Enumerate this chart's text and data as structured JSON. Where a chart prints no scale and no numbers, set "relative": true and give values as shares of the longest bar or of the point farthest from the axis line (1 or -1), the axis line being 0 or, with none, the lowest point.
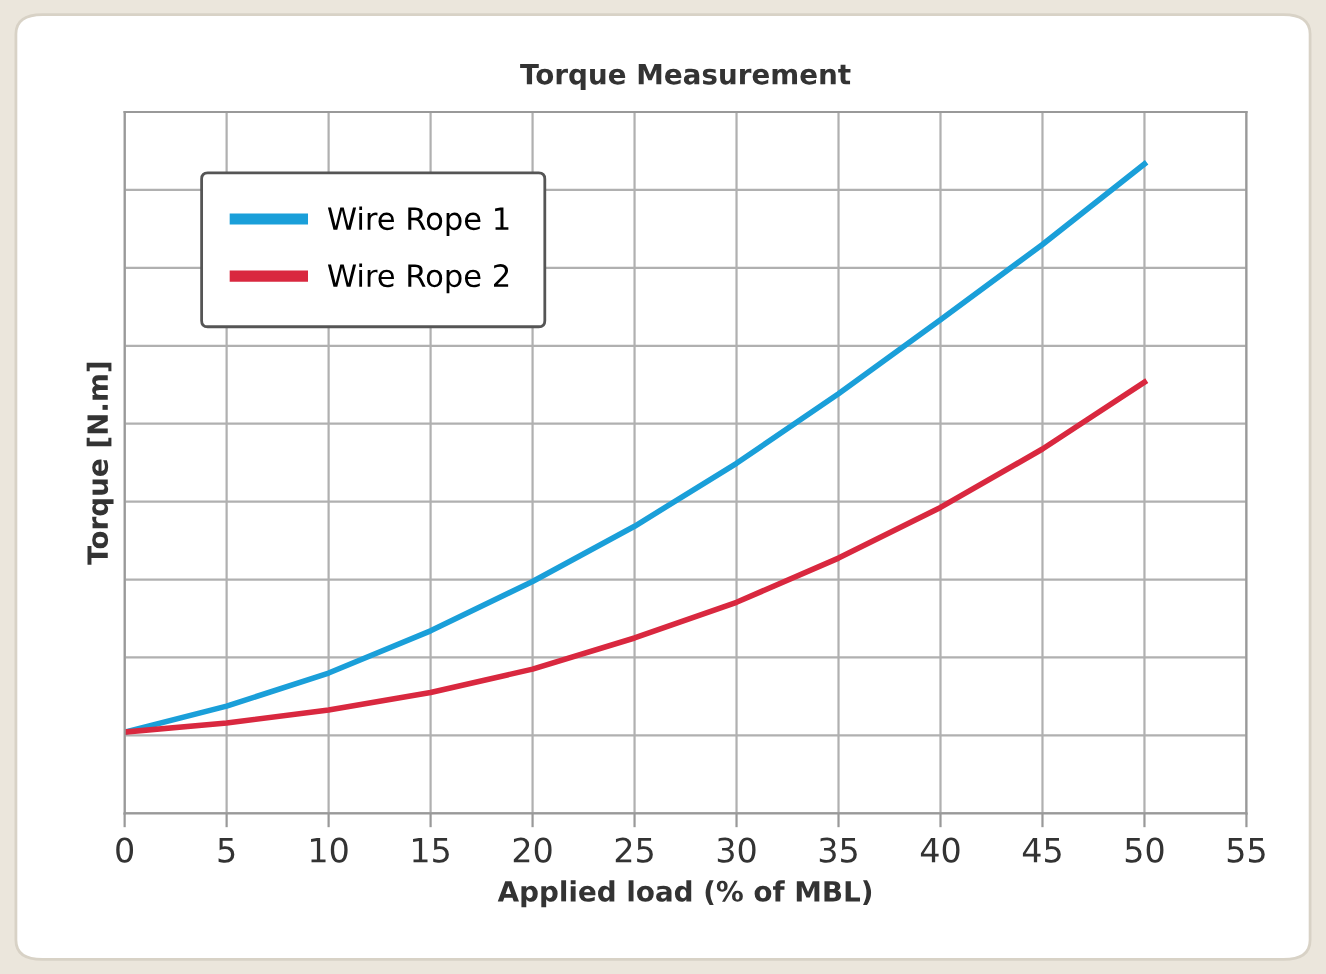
{
  "chart_data": {
    "type": "line",
    "title": "Torque Measurement",
    "xlabel": "Applied load (% of MBL)",
    "ylabel": "Torque [N.m]",
    "relative": true,
    "x": [
      0,
      5,
      10,
      15,
      20,
      25,
      30,
      35,
      40,
      45,
      50
    ],
    "xlim": [
      0,
      55
    ],
    "xticks": [
      0,
      5,
      10,
      15,
      20,
      25,
      30,
      35,
      40,
      45,
      50,
      55
    ],
    "grid": true,
    "legend": "top left",
    "tick_labels": "x",
    "series": [
      {
        "name": "Wire Rope 1",
        "color": "#1a9fd9",
        "values": [
          0.125,
          0.165,
          0.216,
          0.281,
          0.357,
          0.442,
          0.539,
          0.646,
          0.76,
          0.876,
          1
        ]
      },
      {
        "name": "Wire Rope 2",
        "color": "#d9283f",
        "values": [
          0.125,
          0.139,
          0.159,
          0.186,
          0.222,
          0.27,
          0.325,
          0.393,
          0.471,
          0.561,
          0.664
        ]
      }
    ]
  }
}
